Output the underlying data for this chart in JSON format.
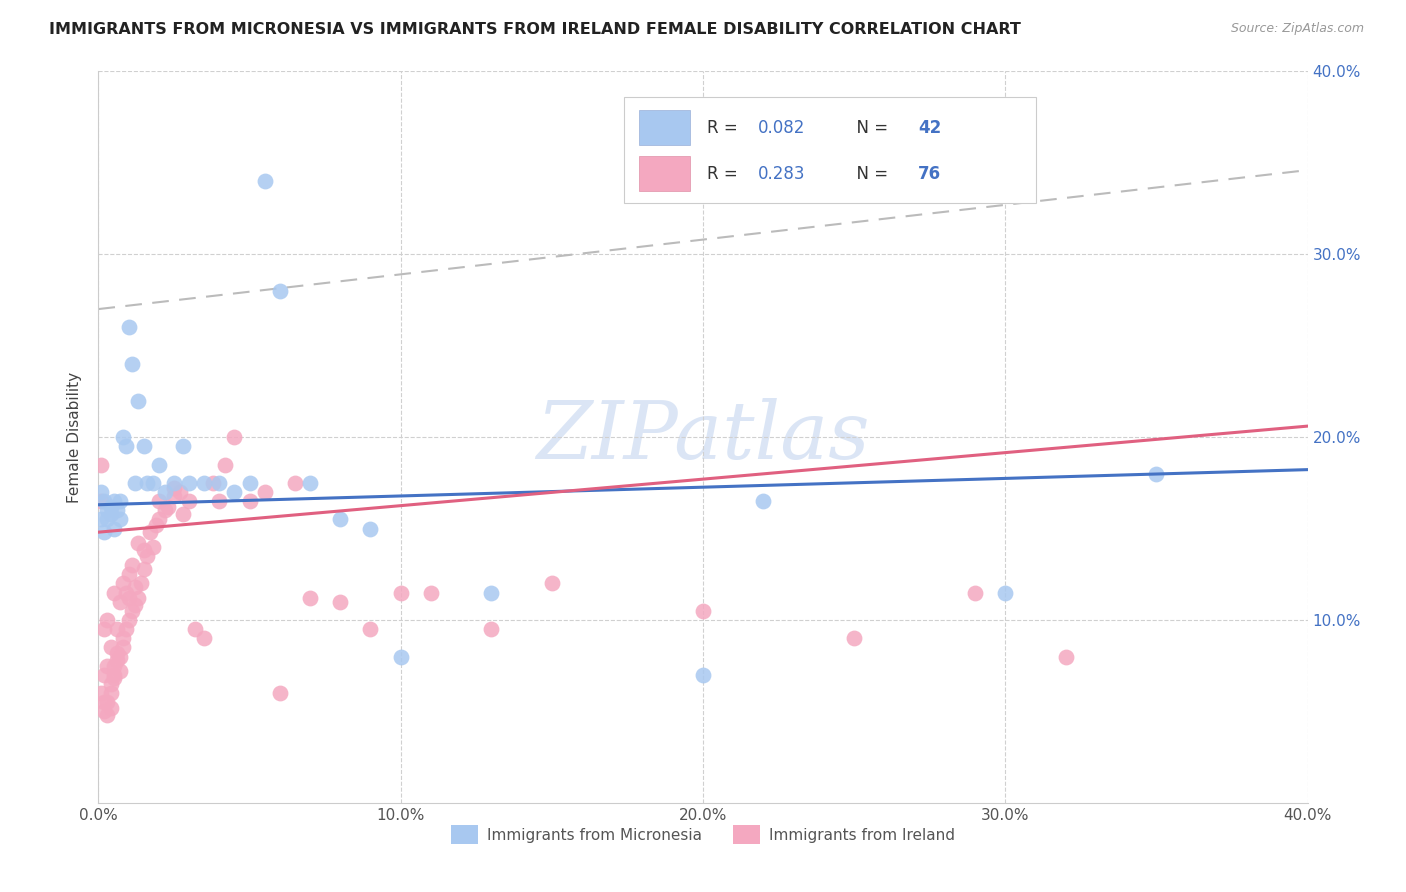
{
  "title": "IMMIGRANTS FROM MICRONESIA VS IMMIGRANTS FROM IRELAND FEMALE DISABILITY CORRELATION CHART",
  "source_text": "Source: ZipAtlas.com",
  "ylabel": "Female Disability",
  "xlim": [
    0.0,
    0.4
  ],
  "ylim": [
    0.0,
    0.4
  ],
  "xticks": [
    0.0,
    0.1,
    0.2,
    0.3,
    0.4
  ],
  "yticks": [
    0.1,
    0.2,
    0.3,
    0.4
  ],
  "xtick_labels": [
    "0.0%",
    "10.0%",
    "20.0%",
    "30.0%",
    "40.0%"
  ],
  "ytick_labels": [
    "10.0%",
    "20.0%",
    "30.0%",
    "40.0%"
  ],
  "micronesia_color": "#a8c8f0",
  "ireland_color": "#f4a8c0",
  "micronesia_line_color": "#4472c4",
  "ireland_line_color": "#e06080",
  "micronesia_R": 0.082,
  "micronesia_N": 42,
  "ireland_R": 0.283,
  "ireland_N": 76,
  "legend_text_color": "#333333",
  "legend_value_color": "#4472c4",
  "watermark": "ZIPatlas",
  "watermark_color": "#c8d8f0",
  "micronesia_x": [
    0.001,
    0.001,
    0.002,
    0.002,
    0.003,
    0.003,
    0.004,
    0.004,
    0.005,
    0.005,
    0.006,
    0.007,
    0.007,
    0.008,
    0.009,
    0.01,
    0.011,
    0.012,
    0.013,
    0.015,
    0.016,
    0.018,
    0.02,
    0.022,
    0.025,
    0.028,
    0.03,
    0.035,
    0.04,
    0.045,
    0.05,
    0.055,
    0.06,
    0.07,
    0.08,
    0.09,
    0.1,
    0.13,
    0.2,
    0.22,
    0.3,
    0.35
  ],
  "micronesia_y": [
    0.17,
    0.155,
    0.165,
    0.148,
    0.16,
    0.155,
    0.158,
    0.162,
    0.15,
    0.165,
    0.16,
    0.155,
    0.165,
    0.2,
    0.195,
    0.26,
    0.24,
    0.175,
    0.22,
    0.195,
    0.175,
    0.175,
    0.185,
    0.17,
    0.175,
    0.195,
    0.175,
    0.175,
    0.175,
    0.17,
    0.175,
    0.34,
    0.28,
    0.175,
    0.155,
    0.15,
    0.08,
    0.115,
    0.07,
    0.165,
    0.115,
    0.18
  ],
  "ireland_x": [
    0.001,
    0.001,
    0.001,
    0.002,
    0.002,
    0.002,
    0.002,
    0.003,
    0.003,
    0.003,
    0.003,
    0.004,
    0.004,
    0.004,
    0.004,
    0.005,
    0.005,
    0.005,
    0.005,
    0.006,
    0.006,
    0.006,
    0.007,
    0.007,
    0.007,
    0.008,
    0.008,
    0.008,
    0.009,
    0.009,
    0.01,
    0.01,
    0.01,
    0.011,
    0.011,
    0.012,
    0.012,
    0.013,
    0.013,
    0.014,
    0.015,
    0.015,
    0.016,
    0.017,
    0.018,
    0.019,
    0.02,
    0.02,
    0.022,
    0.023,
    0.025,
    0.025,
    0.027,
    0.028,
    0.03,
    0.032,
    0.035,
    0.038,
    0.04,
    0.042,
    0.045,
    0.05,
    0.055,
    0.06,
    0.065,
    0.07,
    0.08,
    0.09,
    0.1,
    0.11,
    0.13,
    0.15,
    0.2,
    0.25,
    0.29,
    0.32
  ],
  "ireland_y": [
    0.165,
    0.185,
    0.06,
    0.07,
    0.05,
    0.055,
    0.095,
    0.048,
    0.055,
    0.075,
    0.1,
    0.052,
    0.06,
    0.065,
    0.085,
    0.07,
    0.068,
    0.075,
    0.115,
    0.078,
    0.082,
    0.095,
    0.072,
    0.08,
    0.11,
    0.085,
    0.09,
    0.12,
    0.095,
    0.115,
    0.1,
    0.112,
    0.125,
    0.105,
    0.13,
    0.108,
    0.118,
    0.112,
    0.142,
    0.12,
    0.128,
    0.138,
    0.135,
    0.148,
    0.14,
    0.152,
    0.155,
    0.165,
    0.16,
    0.162,
    0.168,
    0.172,
    0.17,
    0.158,
    0.165,
    0.095,
    0.09,
    0.175,
    0.165,
    0.185,
    0.2,
    0.165,
    0.17,
    0.06,
    0.175,
    0.112,
    0.11,
    0.095,
    0.115,
    0.115,
    0.095,
    0.12,
    0.105,
    0.09,
    0.115,
    0.08
  ]
}
